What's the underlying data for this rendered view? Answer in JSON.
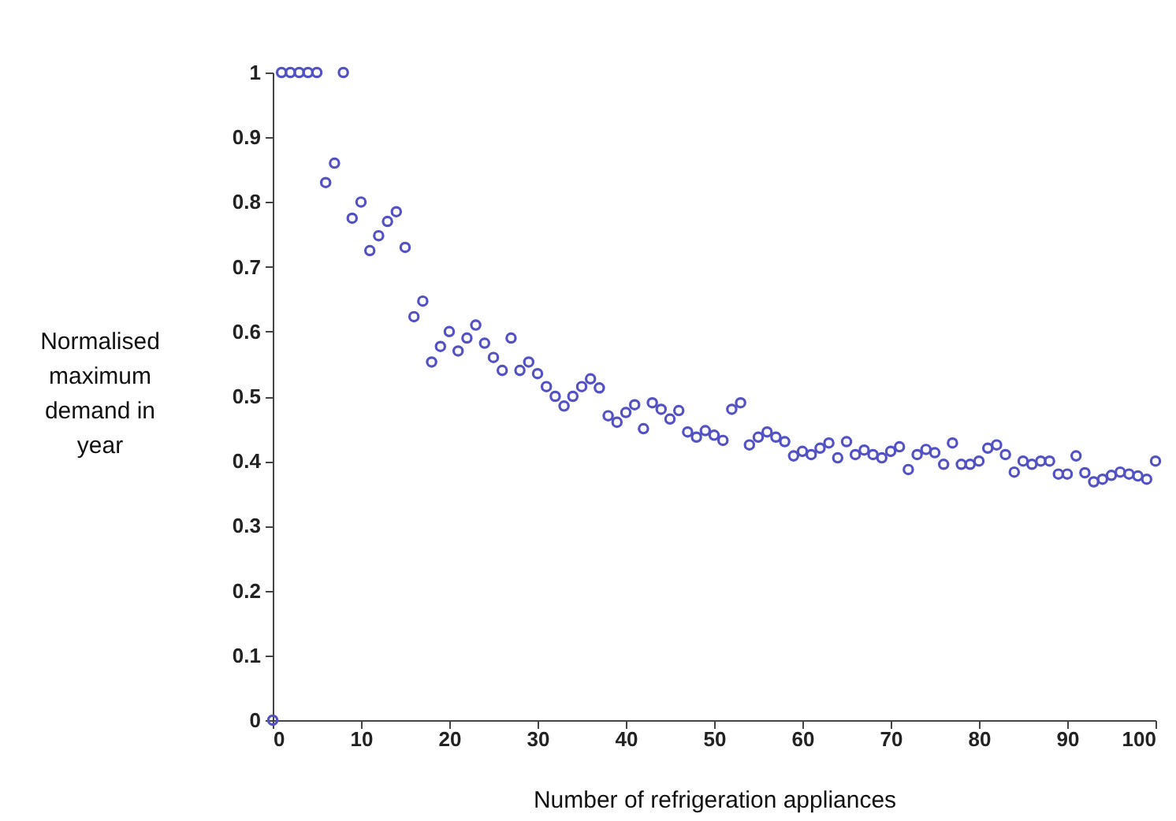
{
  "chart_data": {
    "type": "scatter",
    "xlabel": "Number of refrigeration appliances",
    "ylabel": "Normalised maximum demand in year",
    "x": [
      0,
      1,
      2,
      3,
      4,
      5,
      6,
      7,
      8,
      9,
      10,
      11,
      12,
      13,
      14,
      15,
      16,
      17,
      18,
      19,
      20,
      21,
      22,
      23,
      24,
      25,
      26,
      27,
      28,
      29,
      30,
      31,
      32,
      33,
      34,
      35,
      36,
      37,
      38,
      39,
      40,
      41,
      42,
      43,
      44,
      45,
      46,
      47,
      48,
      49,
      50,
      51,
      52,
      53,
      54,
      55,
      56,
      57,
      58,
      59,
      60,
      61,
      62,
      63,
      64,
      65,
      66,
      67,
      68,
      69,
      70,
      71,
      72,
      73,
      74,
      75,
      76,
      77,
      78,
      79,
      80,
      81,
      82,
      83,
      84,
      85,
      86,
      87,
      88,
      89,
      90,
      91,
      92,
      93,
      94,
      95,
      96,
      97,
      98,
      99,
      100
    ],
    "series": [
      {
        "color": "#5252c4",
        "values": [
          0,
          1,
          1,
          1,
          1,
          1,
          0.83,
          0.86,
          1,
          0.775,
          0.8,
          0.725,
          0.748,
          0.77,
          0.785,
          0.73,
          0.623,
          0.647,
          0.553,
          0.577,
          0.6,
          0.57,
          0.59,
          0.61,
          0.582,
          0.56,
          0.54,
          0.59,
          0.54,
          0.553,
          0.535,
          0.515,
          0.5,
          0.485,
          0.5,
          0.515,
          0.527,
          0.513,
          0.47,
          0.46,
          0.475,
          0.487,
          0.45,
          0.49,
          0.48,
          0.465,
          0.478,
          0.445,
          0.437,
          0.447,
          0.44,
          0.432,
          0.48,
          0.49,
          0.425,
          0.437,
          0.445,
          0.437,
          0.43,
          0.408,
          0.415,
          0.41,
          0.42,
          0.428,
          0.405,
          0.43,
          0.41,
          0.417,
          0.41,
          0.405,
          0.415,
          0.422,
          0.387,
          0.41,
          0.418,
          0.413,
          0.395,
          0.428,
          0.395,
          0.395,
          0.4,
          0.42,
          0.425,
          0.41,
          0.383,
          0.4,
          0.395,
          0.4,
          0.4,
          0.38,
          0.38,
          0.408,
          0.382,
          0.368,
          0.372,
          0.378,
          0.383,
          0.38,
          0.377,
          0.372,
          0.4
        ]
      }
    ],
    "xlim": [
      0,
      100
    ],
    "xticks": [
      0,
      10,
      20,
      30,
      40,
      50,
      60,
      70,
      80,
      90,
      100
    ],
    "ylim": [
      0,
      1
    ],
    "yticks": [
      0,
      0.1,
      0.2,
      0.3,
      0.4,
      0.5,
      0.6,
      0.7,
      0.8,
      0.9,
      1
    ],
    "marker": "circle",
    "grid": false
  }
}
